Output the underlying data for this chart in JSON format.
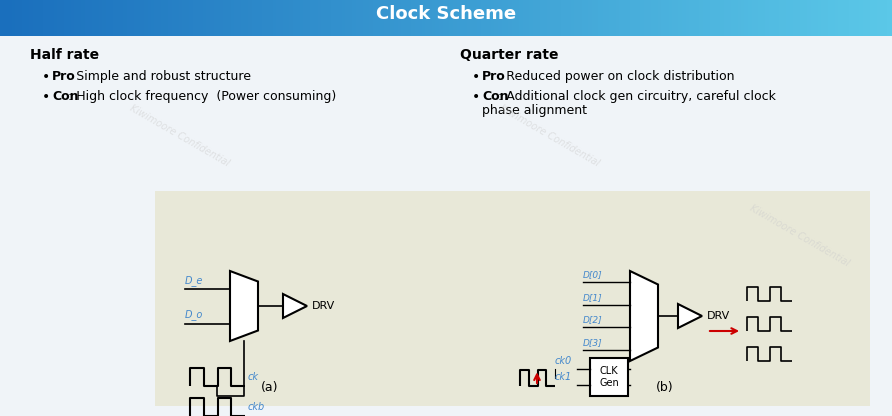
{
  "title": "Clock Scheme",
  "title_color": "#ffffff",
  "title_bg_left": "#1a6fbd",
  "title_bg_right": "#5bc8e8",
  "bg_color": "#f0f4f8",
  "diagram_bg": "#e8e8d8",
  "half_rate_title": "Half rate",
  "half_rate_bullets": [
    [
      "Pro",
      ": Simple and robust structure"
    ],
    [
      "Con",
      ": High clock frequency  (Power consuming)"
    ]
  ],
  "quarter_rate_title": "Quarter rate",
  "quarter_rate_bullets": [
    [
      "Pro",
      ": Reduced power on clock distribution"
    ],
    [
      "Con",
      ": Additional clock gen circuitry, careful clock\nphase alignment"
    ]
  ],
  "watermark": "Kiwimoore Confidential",
  "label_a": "(a)",
  "label_b": "(b)",
  "drv_label": "DRV",
  "clk_gen_label": "CLK\nGen",
  "blue_label_color": "#4488cc",
  "red_arrow_color": "#cc0000"
}
